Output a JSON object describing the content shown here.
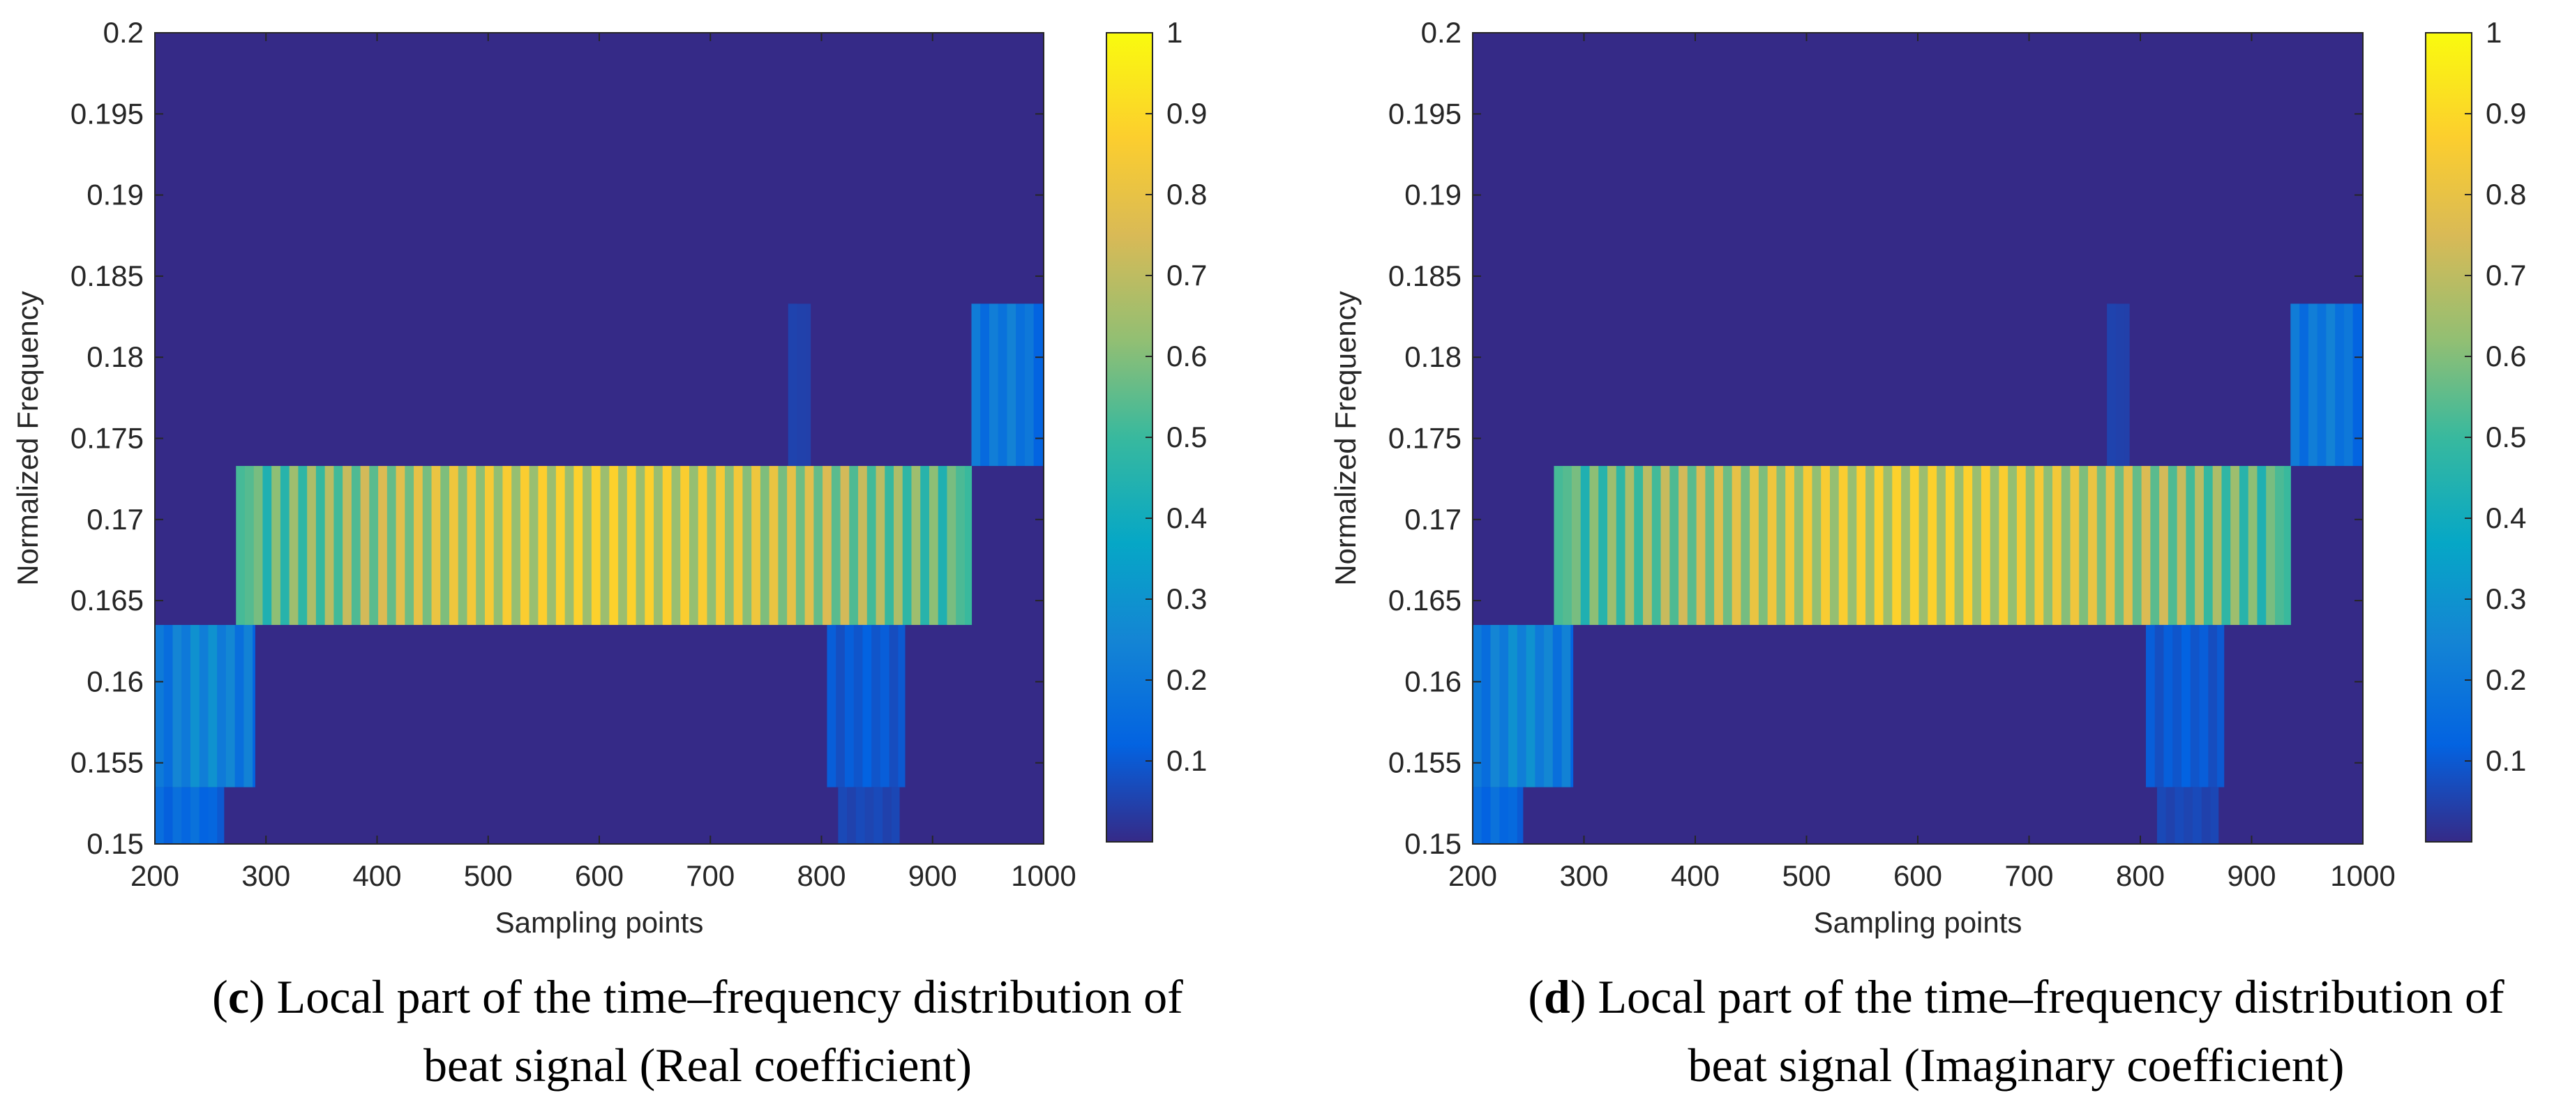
{
  "figure": {
    "colormap": "parula",
    "background_color": "#352A87"
  },
  "chart_data": [
    {
      "type": "heatmap",
      "panel": "c",
      "caption_letter": "c",
      "caption_line1_rest": ") Local part of the time–frequency distribution of",
      "caption_line2": "beat signal (Real coefficient)",
      "xlabel": "Sampling points",
      "ylabel": "Normalized Frequency",
      "xlim": [
        200,
        1000
      ],
      "ylim": [
        0.15,
        0.2
      ],
      "x_ticks": [
        "200",
        "300",
        "400",
        "500",
        "600",
        "700",
        "800",
        "900",
        "1000"
      ],
      "y_ticks": [
        "0.15",
        "0.155",
        "0.16",
        "0.165",
        "0.17",
        "0.175",
        "0.18",
        "0.185",
        "0.19",
        "0.195",
        "0.2"
      ],
      "colorbar_ticks": [
        "0.1",
        "0.2",
        "0.3",
        "0.4",
        "0.5",
        "0.6",
        "0.7",
        "0.8",
        "0.9",
        "1"
      ],
      "clim": [
        0,
        1
      ],
      "bands": [
        {
          "y_range": [
            0.1635,
            0.1733
          ],
          "x_range": [
            273,
            935
          ],
          "peak": 0.88,
          "ramp_start": 290,
          "ramp_end": 920
        },
        {
          "y_range": [
            0.1535,
            0.1635
          ],
          "x_range": [
            200,
            290
          ],
          "peak": 0.3,
          "ramp_start": 210,
          "ramp_end": 280
        },
        {
          "y_range": [
            0.15,
            0.1535
          ],
          "x_range": [
            200,
            262
          ],
          "peak": 0.18,
          "ramp_start": 205,
          "ramp_end": 255
        },
        {
          "y_range": [
            0.1733,
            0.1833
          ],
          "x_range": [
            935,
            1000
          ],
          "peak": 0.24,
          "ramp_start": 940,
          "ramp_end": 995
        },
        {
          "y_range": [
            0.1535,
            0.1635
          ],
          "x_range": [
            805,
            875
          ],
          "peak": 0.12,
          "ramp_start": 810,
          "ramp_end": 870
        },
        {
          "y_range": [
            0.15,
            0.1535
          ],
          "x_range": [
            815,
            870
          ],
          "peak": 0.07,
          "ramp_start": 820,
          "ramp_end": 865
        },
        {
          "y_range": [
            0.1733,
            0.1833
          ],
          "x_range": [
            770,
            790
          ],
          "peak": 0.06,
          "ramp_start": 772,
          "ramp_end": 788
        }
      ]
    },
    {
      "type": "heatmap",
      "panel": "d",
      "caption_letter": "d",
      "caption_line1_rest": ") Local part of the time–frequency distribution of",
      "caption_line2": "beat signal (Imaginary coefficient)",
      "xlabel": "Sampling points",
      "ylabel": "Normalized Frequency",
      "xlim": [
        200,
        1000
      ],
      "ylim": [
        0.15,
        0.2
      ],
      "x_ticks": [
        "200",
        "300",
        "400",
        "500",
        "600",
        "700",
        "800",
        "900",
        "1000"
      ],
      "y_ticks": [
        "0.15",
        "0.155",
        "0.16",
        "0.165",
        "0.17",
        "0.175",
        "0.18",
        "0.185",
        "0.19",
        "0.195",
        "0.2"
      ],
      "colorbar_ticks": [
        "0.1",
        "0.2",
        "0.3",
        "0.4",
        "0.5",
        "0.6",
        "0.7",
        "0.8",
        "0.9",
        "1"
      ],
      "clim": [
        0,
        1
      ],
      "bands": [
        {
          "y_range": [
            0.1635,
            0.1733
          ],
          "x_range": [
            273,
            935
          ],
          "peak": 0.88,
          "ramp_start": 290,
          "ramp_end": 920
        },
        {
          "y_range": [
            0.1535,
            0.1635
          ],
          "x_range": [
            200,
            290
          ],
          "peak": 0.3,
          "ramp_start": 210,
          "ramp_end": 280
        },
        {
          "y_range": [
            0.15,
            0.1535
          ],
          "x_range": [
            200,
            245
          ],
          "peak": 0.18,
          "ramp_start": 205,
          "ramp_end": 240
        },
        {
          "y_range": [
            0.1733,
            0.1833
          ],
          "x_range": [
            935,
            1000
          ],
          "peak": 0.24,
          "ramp_start": 940,
          "ramp_end": 995
        },
        {
          "y_range": [
            0.1535,
            0.1635
          ],
          "x_range": [
            805,
            875
          ],
          "peak": 0.12,
          "ramp_start": 810,
          "ramp_end": 870
        },
        {
          "y_range": [
            0.15,
            0.1535
          ],
          "x_range": [
            815,
            870
          ],
          "peak": 0.07,
          "ramp_start": 820,
          "ramp_end": 865
        },
        {
          "y_range": [
            0.1733,
            0.1833
          ],
          "x_range": [
            770,
            790
          ],
          "peak": 0.06,
          "ramp_start": 772,
          "ramp_end": 788
        }
      ]
    }
  ]
}
